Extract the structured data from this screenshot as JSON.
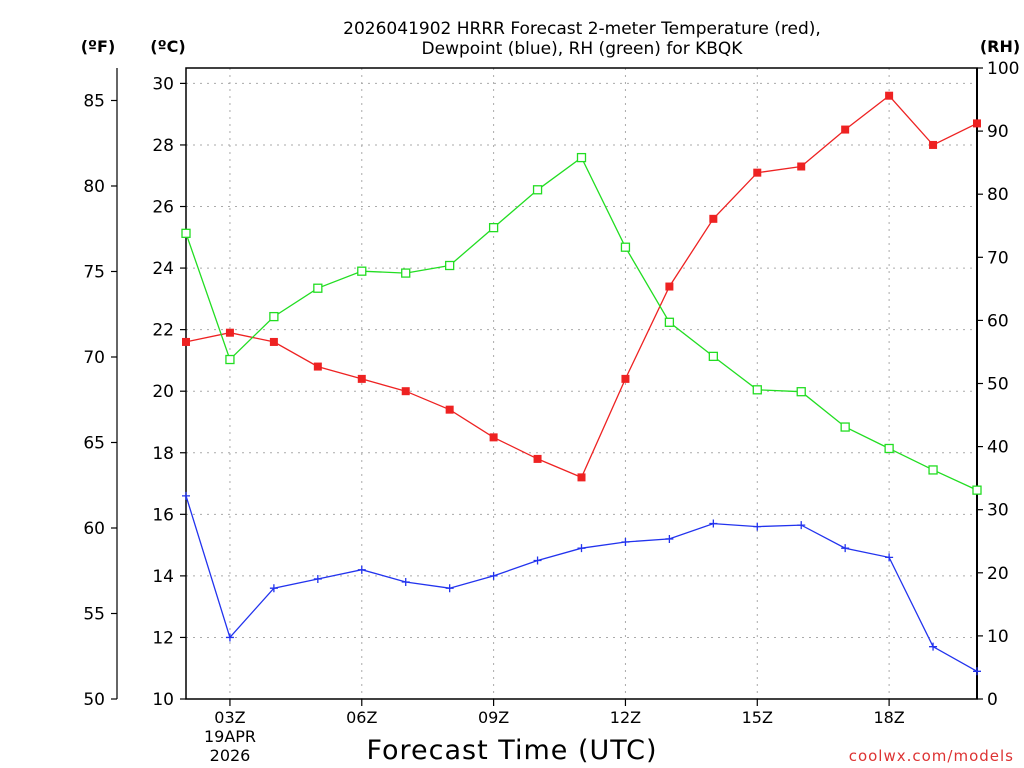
{
  "chart_data": {
    "type": "line",
    "title_line1": "2026041902 HRRR Forecast 2-meter Temperature (red),",
    "title_line2": "Dewpoint (blue), RH (green) for KBQK",
    "xlabel": "Forecast Time (UTC)",
    "credit": "coolwx.com/models",
    "unit_f": "(ºF)",
    "unit_c": "(ºC)",
    "unit_rh": "(RH)",
    "date_line1": "19APR",
    "date_line2": "2026",
    "xlim": [
      2,
      20
    ],
    "ylim_c": [
      10,
      30.5
    ],
    "ylim_rh": [
      0,
      100
    ],
    "x_ticks": [
      3,
      6,
      9,
      12,
      15,
      18
    ],
    "x_tick_labels": [
      "03Z",
      "06Z",
      "09Z",
      "12Z",
      "15Z",
      "18Z"
    ],
    "c_ticks": [
      10,
      12,
      14,
      16,
      18,
      20,
      22,
      24,
      26,
      28,
      30
    ],
    "f_ticks": [
      50,
      55,
      60,
      65,
      70,
      75,
      80,
      85
    ],
    "rh_ticks": [
      0,
      10,
      20,
      30,
      40,
      50,
      60,
      70,
      80,
      90,
      100
    ],
    "x": [
      2,
      3,
      4,
      5,
      6,
      7,
      8,
      9,
      10,
      11,
      12,
      13,
      14,
      15,
      16,
      17,
      18,
      19,
      20
    ],
    "series": [
      {
        "name": "Temperature",
        "unit": "C",
        "color": "#ee2222",
        "values": [
          21.6,
          21.9,
          21.6,
          20.8,
          20.4,
          20.0,
          19.4,
          18.5,
          17.8,
          17.2,
          20.4,
          23.4,
          25.6,
          27.1,
          27.3,
          28.5,
          29.6,
          28.0,
          28.7
        ]
      },
      {
        "name": "Dewpoint",
        "unit": "C",
        "color": "#2233ee",
        "values": [
          16.6,
          12.0,
          13.6,
          13.9,
          14.2,
          13.8,
          13.6,
          14.0,
          14.5,
          14.9,
          15.1,
          15.2,
          15.7,
          15.6,
          15.65,
          14.9,
          14.6,
          11.7,
          10.9
        ]
      },
      {
        "name": "RH",
        "unit": "%",
        "color": "#22dd22",
        "values": [
          73.8,
          53.8,
          60.6,
          65.1,
          67.8,
          67.5,
          68.7,
          74.7,
          80.7,
          85.8,
          71.6,
          59.7,
          54.3,
          49.0,
          48.7,
          43.1,
          39.7,
          36.3,
          33.1
        ]
      }
    ]
  }
}
